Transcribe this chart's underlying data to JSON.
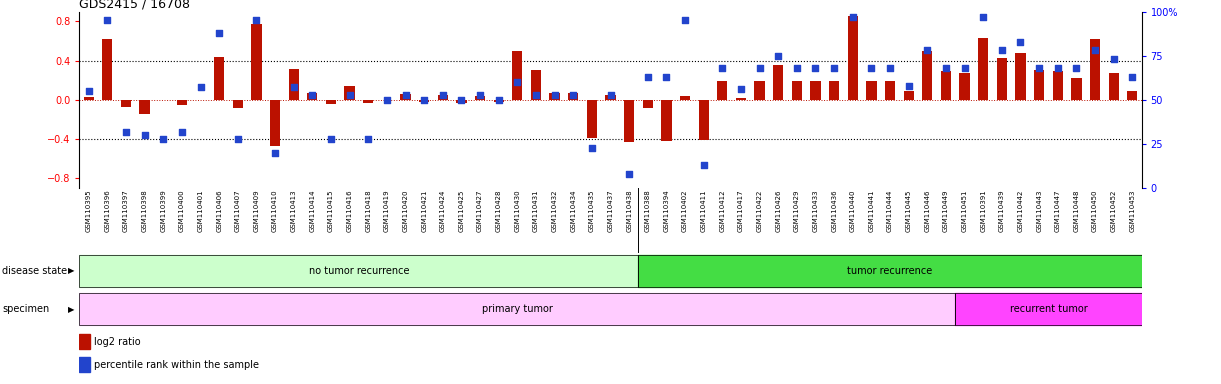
{
  "title": "GDS2415 / 16708",
  "samples": [
    "GSM110395",
    "GSM110396",
    "GSM110397",
    "GSM110398",
    "GSM110399",
    "GSM110400",
    "GSM110401",
    "GSM110406",
    "GSM110407",
    "GSM110409",
    "GSM110410",
    "GSM110413",
    "GSM110414",
    "GSM110415",
    "GSM110416",
    "GSM110418",
    "GSM110419",
    "GSM110420",
    "GSM110421",
    "GSM110424",
    "GSM110425",
    "GSM110427",
    "GSM110428",
    "GSM110430",
    "GSM110431",
    "GSM110432",
    "GSM110434",
    "GSM110435",
    "GSM110437",
    "GSM110438",
    "GSM110388",
    "GSM110394",
    "GSM110402",
    "GSM110411",
    "GSM110412",
    "GSM110417",
    "GSM110422",
    "GSM110426",
    "GSM110429",
    "GSM110433",
    "GSM110436",
    "GSM110440",
    "GSM110441",
    "GSM110444",
    "GSM110445",
    "GSM110446",
    "GSM110449",
    "GSM110451",
    "GSM110391",
    "GSM110439",
    "GSM110442",
    "GSM110443",
    "GSM110447",
    "GSM110448",
    "GSM110450",
    "GSM110452",
    "GSM110453"
  ],
  "log2_ratio": [
    0.03,
    0.62,
    -0.07,
    -0.14,
    0.0,
    -0.05,
    0.0,
    0.44,
    -0.08,
    0.77,
    -0.47,
    0.31,
    0.07,
    -0.04,
    0.14,
    -0.03,
    0.0,
    0.06,
    -0.02,
    0.05,
    -0.03,
    0.04,
    -0.02,
    0.5,
    0.3,
    0.07,
    0.07,
    -0.39,
    0.05,
    -0.43,
    -0.08,
    -0.42,
    0.04,
    -0.41,
    0.19,
    0.02,
    0.19,
    0.35,
    0.19,
    0.19,
    0.19,
    0.85,
    0.19,
    0.19,
    0.09,
    0.5,
    0.29,
    0.27,
    0.63,
    0.43,
    0.48,
    0.3,
    0.29,
    0.22,
    0.62,
    0.27,
    0.09
  ],
  "percentile": [
    55,
    95,
    32,
    30,
    28,
    32,
    57,
    88,
    28,
    95,
    20,
    57,
    53,
    28,
    53,
    28,
    50,
    53,
    50,
    53,
    50,
    53,
    50,
    60,
    53,
    53,
    53,
    23,
    53,
    8,
    63,
    63,
    95,
    13,
    68,
    56,
    68,
    75,
    68,
    68,
    68,
    97,
    68,
    68,
    58,
    78,
    68,
    68,
    97,
    78,
    83,
    68,
    68,
    68,
    78,
    73,
    63
  ],
  "no_recurrence_count": 30,
  "primary_tumor_count": 47,
  "bar_color": "#bb1100",
  "dot_color": "#2244cc",
  "no_recurrence_color": "#ccffcc",
  "tumor_recurrence_color": "#44dd44",
  "primary_tumor_color": "#ffccff",
  "recurrent_tumor_color": "#ff44ff",
  "ylim": [
    -0.9,
    0.9
  ],
  "yticks_left": [
    -0.8,
    -0.4,
    0.0,
    0.4,
    0.8
  ],
  "yticks_right": [
    0,
    25,
    50,
    75,
    100
  ],
  "hline_dotted": [
    -0.4,
    0.4
  ],
  "hline_red_dotted": 0.0,
  "background": "#ffffff"
}
